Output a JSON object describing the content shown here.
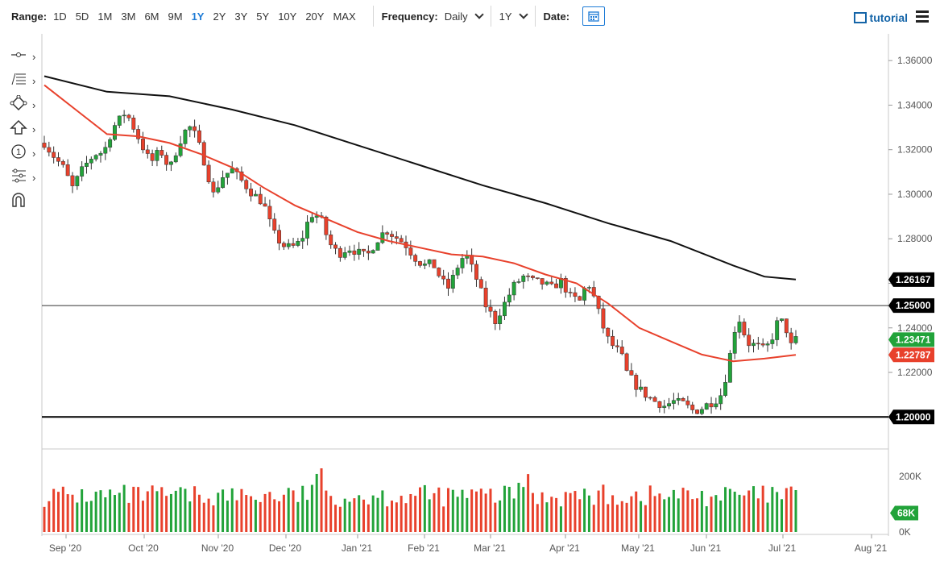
{
  "toolbar": {
    "range_label": "Range:",
    "ranges": [
      "1D",
      "5D",
      "1M",
      "3M",
      "6M",
      "9M",
      "1Y",
      "2Y",
      "3Y",
      "5Y",
      "10Y",
      "20Y",
      "MAX"
    ],
    "active_range": "1Y",
    "frequency_label": "Frequency:",
    "frequency_value": "Daily",
    "period_value": "1Y",
    "date_label": "Date:",
    "tutorial_label": "tutorial"
  },
  "left_tools": [
    "line-tool-icon",
    "fib-tool-icon",
    "shape-tool-icon",
    "arrow-tool-icon",
    "counter-tool-icon",
    "pattern-tool-icon",
    "magnet-icon"
  ],
  "colors": {
    "up": "#22a33a",
    "down": "#e8412c",
    "ma_fast": "#e8412c",
    "ma_slow": "#111111",
    "accent": "#1e7bd6"
  },
  "chart_data": {
    "type": "candlestick",
    "x_ticks": [
      "Sep '20",
      "Oct '20",
      "Nov '20",
      "Dec '20",
      "Jan '21",
      "Feb '21",
      "Mar '21",
      "Apr '21",
      "May '21",
      "Jun '21",
      "Jul '21",
      "Aug '21"
    ],
    "y_ticks": [
      "1.36000",
      "1.34000",
      "1.32000",
      "1.30000",
      "1.28000",
      "1.26000",
      "1.24000",
      "1.22000",
      "1.20000"
    ],
    "ylim": [
      1.186,
      1.372
    ],
    "price_path": [
      [
        0,
        1.323
      ],
      [
        5,
        1.318
      ],
      [
        12,
        1.312
      ],
      [
        18,
        1.303
      ],
      [
        25,
        1.312
      ],
      [
        32,
        1.318
      ],
      [
        38,
        1.319
      ],
      [
        44,
        1.33
      ],
      [
        52,
        1.337
      ],
      [
        57,
        1.33
      ],
      [
        63,
        1.321
      ],
      [
        68,
        1.314
      ],
      [
        74,
        1.32
      ],
      [
        80,
        1.311
      ],
      [
        86,
        1.323
      ],
      [
        92,
        1.331
      ],
      [
        97,
        1.326
      ],
      [
        102,
        1.315
      ],
      [
        108,
        1.3
      ],
      [
        114,
        1.308
      ],
      [
        120,
        1.311
      ],
      [
        126,
        1.306
      ],
      [
        132,
        1.301
      ],
      [
        140,
        1.296
      ],
      [
        146,
        1.283
      ],
      [
        152,
        1.277
      ],
      [
        158,
        1.276
      ],
      [
        164,
        1.279
      ],
      [
        170,
        1.291
      ],
      [
        176,
        1.29
      ],
      [
        182,
        1.278
      ],
      [
        188,
        1.273
      ],
      [
        194,
        1.276
      ],
      [
        200,
        1.274
      ],
      [
        206,
        1.272
      ],
      [
        212,
        1.279
      ],
      [
        218,
        1.284
      ],
      [
        224,
        1.281
      ],
      [
        230,
        1.278
      ],
      [
        236,
        1.272
      ],
      [
        242,
        1.268
      ],
      [
        248,
        1.269
      ],
      [
        254,
        1.261
      ],
      [
        258,
        1.258
      ],
      [
        262,
        1.264
      ],
      [
        266,
        1.271
      ],
      [
        270,
        1.272
      ],
      [
        276,
        1.262
      ],
      [
        282,
        1.25
      ],
      [
        288,
        1.243
      ],
      [
        294,
        1.251
      ],
      [
        300,
        1.259
      ],
      [
        306,
        1.263
      ],
      [
        312,
        1.261
      ],
      [
        318,
        1.26
      ],
      [
        324,
        1.258
      ],
      [
        330,
        1.261
      ],
      [
        336,
        1.254
      ],
      [
        342,
        1.252
      ],
      [
        347,
        1.261
      ],
      [
        352,
        1.252
      ],
      [
        356,
        1.242
      ],
      [
        360,
        1.235
      ],
      [
        364,
        1.231
      ],
      [
        368,
        1.229
      ],
      [
        372,
        1.22
      ],
      [
        378,
        1.214
      ],
      [
        384,
        1.21
      ],
      [
        390,
        1.207
      ],
      [
        396,
        1.205
      ],
      [
        402,
        1.207
      ],
      [
        408,
        1.206
      ],
      [
        414,
        1.203
      ],
      [
        418,
        1.203
      ],
      [
        424,
        1.206
      ],
      [
        428,
        1.207
      ],
      [
        432,
        1.21
      ],
      [
        436,
        1.22
      ],
      [
        440,
        1.236
      ],
      [
        443,
        1.246
      ],
      [
        446,
        1.239
      ],
      [
        450,
        1.233
      ],
      [
        455,
        1.232
      ],
      [
        460,
        1.23
      ],
      [
        464,
        1.234
      ],
      [
        468,
        1.242
      ],
      [
        472,
        1.243
      ],
      [
        475,
        1.237
      ],
      [
        477,
        1.232
      ],
      [
        480,
        1.2347
      ]
    ],
    "n_days": 481,
    "series": [
      {
        "name": "Daily candles",
        "last": "1.23471"
      },
      {
        "name": "SMA fast",
        "last": "1.22787",
        "path": [
          [
            0,
            1.349
          ],
          [
            20,
            1.338
          ],
          [
            40,
            1.327
          ],
          [
            60,
            1.326
          ],
          [
            80,
            1.323
          ],
          [
            100,
            1.318
          ],
          [
            120,
            1.312
          ],
          [
            140,
            1.303
          ],
          [
            160,
            1.295
          ],
          [
            180,
            1.289
          ],
          [
            200,
            1.283
          ],
          [
            220,
            1.279
          ],
          [
            240,
            1.276
          ],
          [
            260,
            1.273
          ],
          [
            280,
            1.272
          ],
          [
            300,
            1.269
          ],
          [
            320,
            1.264
          ],
          [
            340,
            1.26
          ],
          [
            360,
            1.251
          ],
          [
            380,
            1.24
          ],
          [
            400,
            1.234
          ],
          [
            420,
            1.228
          ],
          [
            440,
            1.225
          ],
          [
            460,
            1.2262
          ],
          [
            480,
            1.2279
          ]
        ]
      },
      {
        "name": "SMA slow",
        "last": "1.26167",
        "path": [
          [
            0,
            1.353
          ],
          [
            40,
            1.346
          ],
          [
            80,
            1.344
          ],
          [
            120,
            1.338
          ],
          [
            160,
            1.331
          ],
          [
            200,
            1.322
          ],
          [
            240,
            1.313
          ],
          [
            280,
            1.304
          ],
          [
            320,
            1.296
          ],
          [
            360,
            1.287
          ],
          [
            400,
            1.279
          ],
          [
            440,
            1.268
          ],
          [
            460,
            1.263
          ],
          [
            480,
            1.2617
          ]
        ]
      }
    ],
    "hlines": [
      {
        "value": 1.25,
        "label": "1.25000",
        "color": "#333333",
        "width": 1
      },
      {
        "value": 1.2,
        "label": "1.20000",
        "color": "#000000",
        "width": 2
      }
    ],
    "price_labels": [
      {
        "text": "1.26167",
        "value": 1.26167,
        "bg": "#000000"
      },
      {
        "text": "1.25000",
        "value": 1.25,
        "bg": "#000000"
      },
      {
        "text": "1.23471",
        "value": 1.23471,
        "bg": "#22a33a"
      },
      {
        "text": "1.22787",
        "value": 1.22787,
        "bg": "#e8412c"
      },
      {
        "text": "1.20000",
        "value": 1.2,
        "bg": "#000000"
      }
    ],
    "volume": {
      "y_ticks": [
        "200K",
        "0K"
      ],
      "ymax": 260000,
      "last_label": "68K",
      "last_value": 68000
    },
    "grid": false,
    "legend": "none"
  }
}
